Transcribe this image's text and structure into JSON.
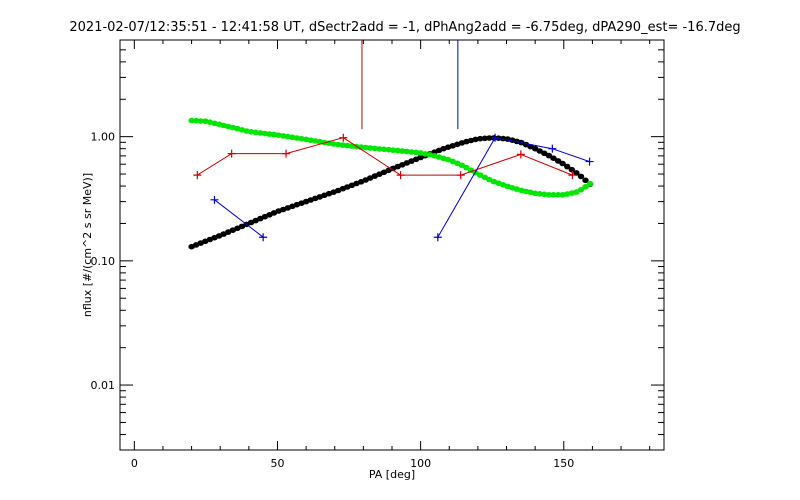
{
  "chart_data": {
    "type": "scatter",
    "title": "2021-02-07/12:35:51 - 12:41:58 UT, dSectr2add = -1, dPhAng2add = -6.75deg, dPA290_est= -16.7deg",
    "xlabel": "PA [deg]",
    "ylabel": "nflux [#/(cm^2 s sr MeV)]",
    "xlim": [
      -5,
      185
    ],
    "ylim": [
      0.003,
      6
    ],
    "y_scale": "log",
    "x_ticks": [
      0,
      50,
      100,
      150
    ],
    "x_tick_labels": [
      "0",
      "50",
      "100",
      "150"
    ],
    "y_ticks": [
      0.01,
      0.1,
      1.0
    ],
    "y_tick_labels": [
      "0.01",
      "0.10",
      "1.00"
    ],
    "grid": false,
    "vertical_markers": [
      {
        "x": 79.5,
        "y_from": 1.15,
        "color": "#cc0000"
      },
      {
        "x": 113,
        "y_from": 1.15,
        "color": "#0000cc"
      }
    ],
    "series": [
      {
        "kind": "line-plus",
        "color": "#cc0000",
        "x": [
          22,
          34,
          53,
          73,
          93,
          114,
          135,
          153
        ],
        "y": [
          0.49,
          0.73,
          0.73,
          0.98,
          0.49,
          0.49,
          0.72,
          0.49
        ]
      },
      {
        "kind": "line-plus",
        "color": "#0000cc",
        "segments": [
          {
            "x": [
              28,
              45
            ],
            "y": [
              0.31,
              0.155
            ]
          },
          {
            "x": [
              106,
              126,
              146,
              159
            ],
            "y": [
              0.155,
              0.98,
              0.8,
              0.63
            ]
          }
        ]
      },
      {
        "kind": "thick-curve",
        "color": "#000000",
        "x": [
          20,
          30,
          40,
          50,
          60,
          70,
          80,
          90,
          100,
          108,
          115,
          120,
          125,
          130,
          135,
          140,
          145,
          150,
          155,
          160
        ],
        "y": [
          0.13,
          0.16,
          0.2,
          0.25,
          0.3,
          0.36,
          0.44,
          0.55,
          0.68,
          0.8,
          0.9,
          0.96,
          0.98,
          0.96,
          0.9,
          0.8,
          0.7,
          0.6,
          0.5,
          0.4
        ]
      },
      {
        "kind": "thick-curve",
        "color": "#00e600",
        "x": [
          20,
          25,
          30,
          40,
          50,
          60,
          70,
          80,
          90,
          100,
          105,
          110,
          115,
          120,
          125,
          130,
          135,
          140,
          145,
          150,
          155,
          160
        ],
        "y": [
          1.35,
          1.33,
          1.25,
          1.1,
          1.03,
          0.95,
          0.87,
          0.82,
          0.78,
          0.74,
          0.7,
          0.65,
          0.58,
          0.5,
          0.44,
          0.4,
          0.37,
          0.35,
          0.34,
          0.34,
          0.36,
          0.43
        ]
      }
    ]
  }
}
